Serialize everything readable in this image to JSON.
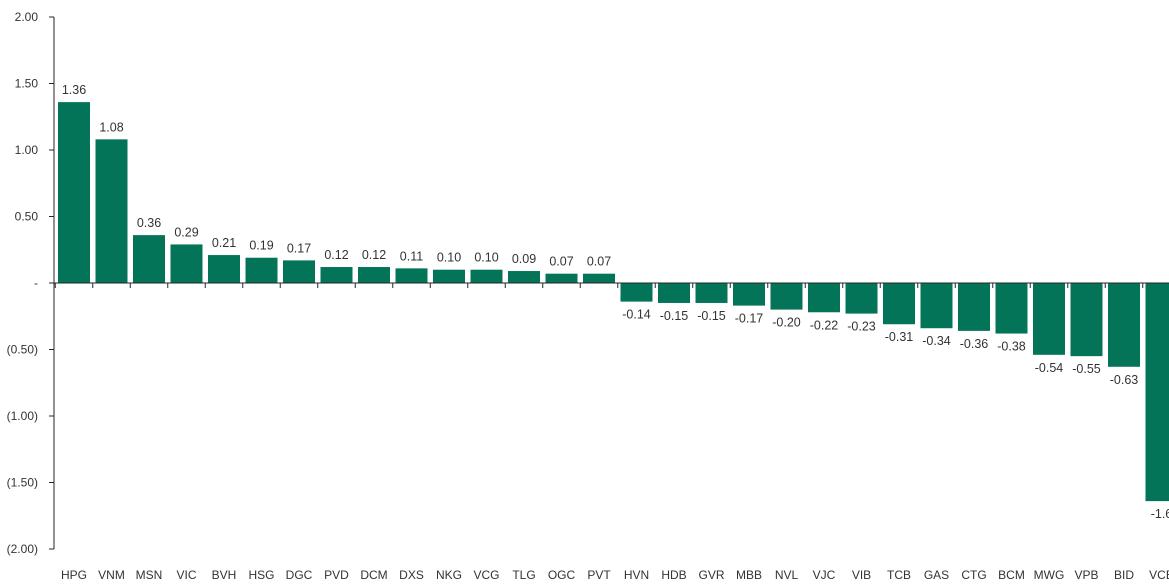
{
  "colors": {
    "bar": "#037457",
    "axis": "#262626",
    "text": "#333333"
  },
  "chart_data": {
    "type": "bar",
    "title": "",
    "xlabel": "",
    "ylabel": "",
    "ylim": [
      -2.0,
      2.0
    ],
    "yticks": [
      2.0,
      1.5,
      1.0,
      0.5,
      0,
      -0.5,
      -1.0,
      -1.5,
      -2.0
    ],
    "ytick_labels": [
      "2.00",
      "1.50",
      "1.00",
      "0.50",
      "-",
      "(0.50)",
      "(1.00)",
      "(1.50)",
      "(2.00)"
    ],
    "grid": false,
    "legend": "none",
    "categories": [
      "HPG",
      "VNM",
      "MSN",
      "VIC",
      "BVH",
      "HSG",
      "DGC",
      "PVD",
      "DCM",
      "DXS",
      "NKG",
      "VCG",
      "TLG",
      "OGC",
      "PVT",
      "HVN",
      "HDB",
      "GVR",
      "MBB",
      "NVL",
      "VJC",
      "VIB",
      "TCB",
      "GAS",
      "CTG",
      "BCM",
      "MWG",
      "VPB",
      "BID",
      "VCB"
    ],
    "values": [
      1.36,
      1.08,
      0.36,
      0.29,
      0.21,
      0.19,
      0.17,
      0.12,
      0.12,
      0.11,
      0.1,
      0.1,
      0.09,
      0.07,
      0.07,
      -0.14,
      -0.15,
      -0.15,
      -0.17,
      -0.2,
      -0.22,
      -0.23,
      -0.31,
      -0.34,
      -0.36,
      -0.38,
      -0.54,
      -0.55,
      -0.63,
      -1.64
    ],
    "data_labels": [
      "1.36",
      "1.08",
      "0.36",
      "0.29",
      "0.21",
      "0.19",
      "0.17",
      "0.12",
      "0.12",
      "0.11",
      "0.10",
      "0.10",
      "0.09",
      "0.07",
      "0.07",
      "-0.14",
      "-0.15",
      "-0.15",
      "-0.17",
      "-0.20",
      "-0.22",
      "-0.23",
      "-0.31",
      "-0.34",
      "-0.36",
      "-0.38",
      "-0.54",
      "-0.55",
      "-0.63",
      "-1.6"
    ]
  }
}
